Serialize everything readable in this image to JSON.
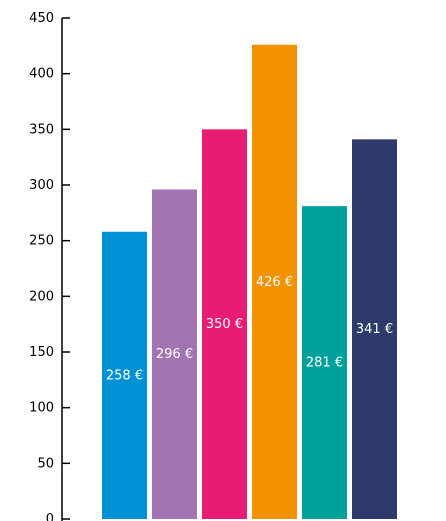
{
  "chart_data": {
    "type": "bar",
    "title": "",
    "xlabel": "",
    "ylabel": "",
    "ylim": [
      0,
      450
    ],
    "yticks": [
      0,
      50,
      100,
      150,
      200,
      250,
      300,
      350,
      400,
      450
    ],
    "grid": false,
    "values": [
      258,
      296,
      350,
      426,
      281,
      341
    ],
    "data_labels": [
      "258 €",
      "296 €",
      "350 €",
      "426 €",
      "281 €",
      "341 €"
    ],
    "colors": [
      "#0090d4",
      "#a274b2",
      "#e71d73",
      "#f39200",
      "#00a19a",
      "#2e3a6b"
    ]
  }
}
